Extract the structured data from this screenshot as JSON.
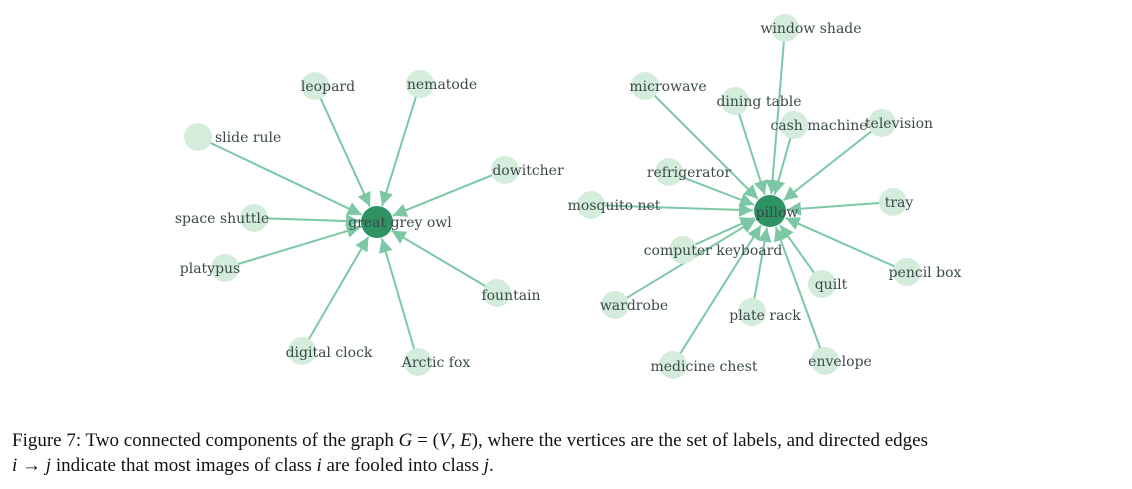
{
  "colors": {
    "edge": "#7cc8a4",
    "leaf": "#d4ecdb",
    "hub": "#2e9263",
    "label": "#3a4a4a"
  },
  "graph": {
    "directed": true,
    "components": [
      {
        "hub": "great grey owl",
        "sources": [
          "leopard",
          "nematode",
          "slide rule",
          "dowitcher",
          "space shuttle",
          "platypus",
          "fountain",
          "digital clock",
          "Arctic fox"
        ]
      },
      {
        "hub": "pillow",
        "sources": [
          "window shade",
          "microwave",
          "dining table",
          "cash machine",
          "television",
          "refrigerator",
          "mosquito net",
          "tray",
          "computer keyboard",
          "pencil box",
          "quilt",
          "wardrobe",
          "plate rack",
          "envelope",
          "medicine chest"
        ]
      }
    ]
  },
  "caption": {
    "prefix": "Figure 7:  Two connected components of the graph ",
    "G": "G",
    "eq": " = (",
    "V": "V",
    "comma": ", ",
    "E": "E",
    "close": "), where the vertices are the set of labels, and directed edges",
    "i1": "i",
    "arrow": " → ",
    "j1": "j",
    "mid": " indicate that most images of class ",
    "i2": "i",
    "mid2": " are fooled into class ",
    "j2": "j",
    "end": "."
  }
}
